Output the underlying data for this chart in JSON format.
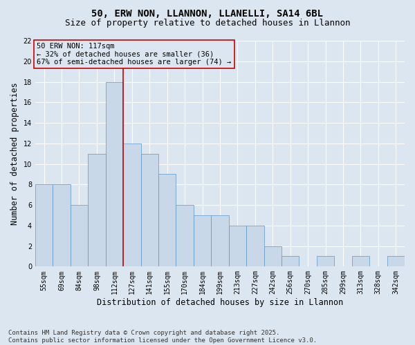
{
  "title_line1": "50, ERW NON, LLANNON, LLANELLI, SA14 6BL",
  "title_line2": "Size of property relative to detached houses in Llannon",
  "xlabel": "Distribution of detached houses by size in Llannon",
  "ylabel": "Number of detached properties",
  "bar_labels": [
    "55sqm",
    "69sqm",
    "84sqm",
    "98sqm",
    "112sqm",
    "127sqm",
    "141sqm",
    "155sqm",
    "170sqm",
    "184sqm",
    "199sqm",
    "213sqm",
    "227sqm",
    "242sqm",
    "256sqm",
    "270sqm",
    "285sqm",
    "299sqm",
    "313sqm",
    "328sqm",
    "342sqm"
  ],
  "bar_values": [
    8,
    8,
    6,
    11,
    18,
    12,
    11,
    9,
    6,
    5,
    5,
    4,
    4,
    2,
    1,
    0,
    1,
    0,
    1,
    0,
    1
  ],
  "bar_color": "#c8d8e8",
  "bar_edge_color": "#5a96c8",
  "vline_color": "#cc0000",
  "annotation_line1": "50 ERW NON: 117sqm",
  "annotation_line2": "← 32% of detached houses are smaller (36)",
  "annotation_line3": "67% of semi-detached houses are larger (74) →",
  "annotation_box_color": "#cc0000",
  "background_color": "#dce6f0",
  "ylim": [
    0,
    22
  ],
  "yticks": [
    0,
    2,
    4,
    6,
    8,
    10,
    12,
    14,
    16,
    18,
    20,
    22
  ],
  "footer_text": "Contains HM Land Registry data © Crown copyright and database right 2025.\nContains public sector information licensed under the Open Government Licence v3.0.",
  "title_fontsize": 10,
  "subtitle_fontsize": 9,
  "axis_label_fontsize": 8.5,
  "tick_fontsize": 7,
  "annotation_fontsize": 7.5,
  "footer_fontsize": 6.5
}
